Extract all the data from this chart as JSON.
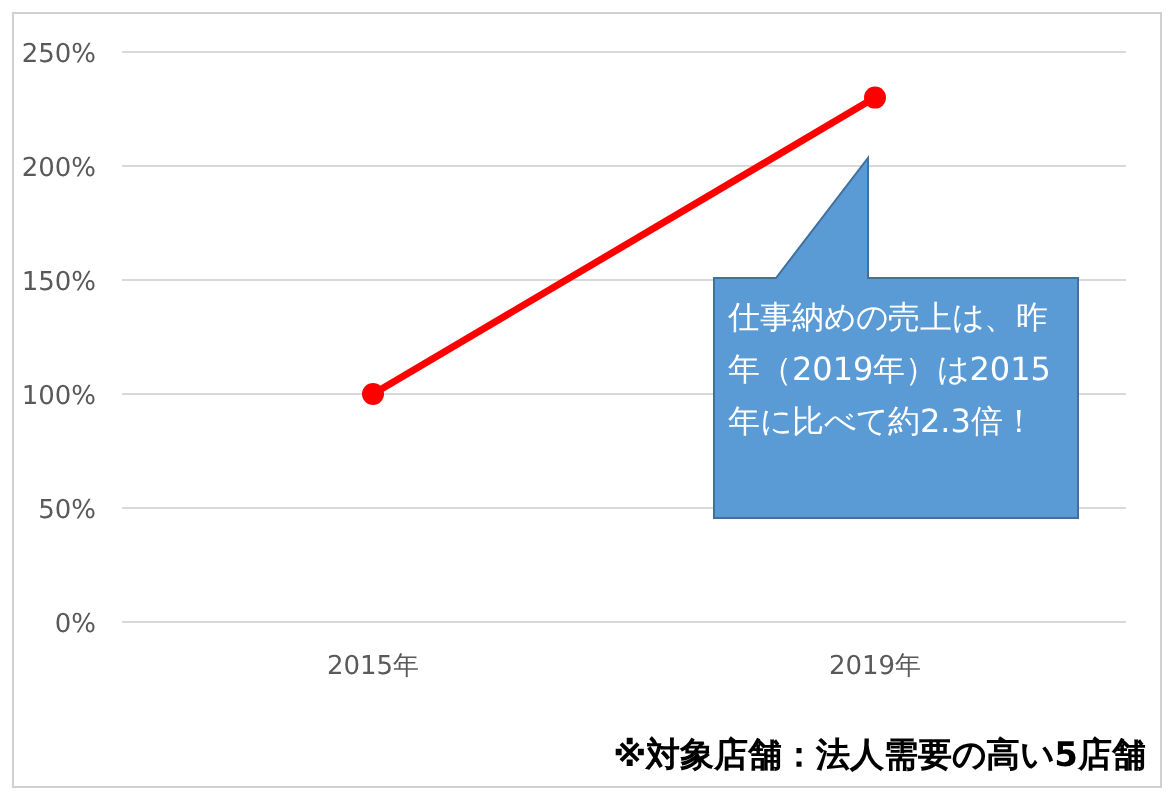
{
  "chart_data": {
    "type": "line",
    "categories": [
      "2015年",
      "2019年"
    ],
    "series": [
      {
        "color": "#ff0000",
        "values": [
          100,
          230
        ]
      }
    ],
    "ylim": [
      0,
      250
    ],
    "yticks": [
      {
        "value": 0,
        "label": "0%"
      },
      {
        "value": 50,
        "label": "50%"
      },
      {
        "value": 100,
        "label": "100%"
      },
      {
        "value": 150,
        "label": "150%"
      },
      {
        "value": 200,
        "label": "200%"
      },
      {
        "value": 250,
        "label": "250%"
      }
    ],
    "grid": "y",
    "marker": "circle",
    "line_style": "solid",
    "annotations": [
      "仕事納めの売上は、昨年（2019年）は2015年に比べて約2.3倍！",
      "※対象店舗：法人需要の高い5店舗"
    ]
  }
}
